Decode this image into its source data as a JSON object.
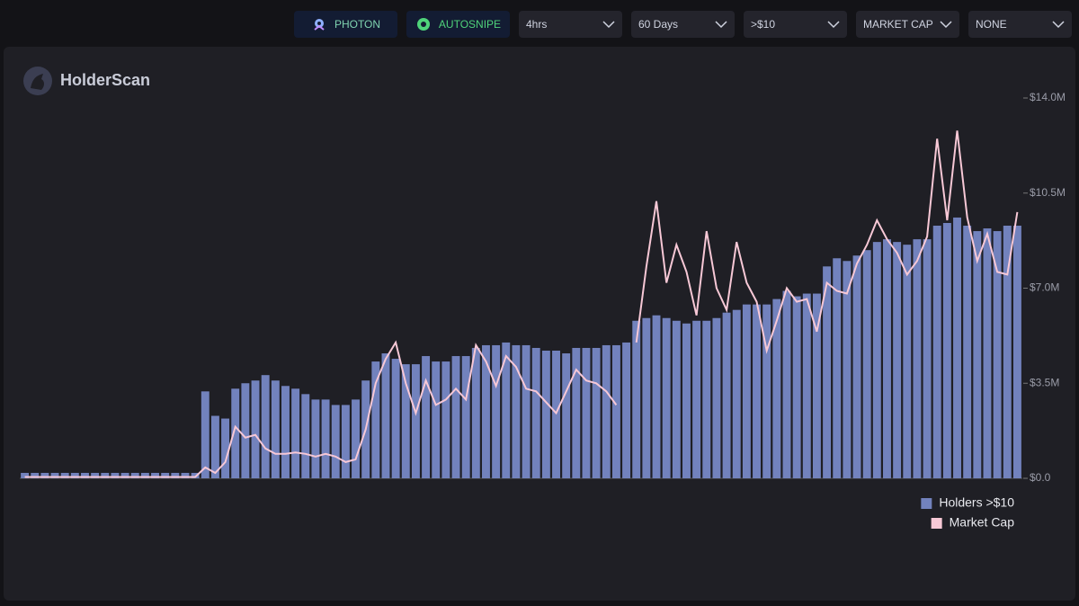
{
  "toolbar": {
    "buttons": [
      "PHOTON",
      "AUTOSNIPE"
    ],
    "dropdowns": [
      "4hrs",
      "60 Days",
      ">$10",
      "MARKET CAP",
      "NONE"
    ]
  },
  "brand": "HolderScan",
  "chart_data": {
    "type": "combo",
    "categories": [
      null,
      null,
      null,
      null,
      null,
      null,
      null,
      null,
      null,
      null,
      null,
      null,
      null,
      null,
      null,
      null,
      null,
      null,
      null,
      null,
      null,
      null,
      null,
      null,
      null,
      null,
      null,
      null,
      null,
      null,
      null,
      null,
      null,
      null,
      null,
      null,
      null,
      null,
      null,
      null,
      null,
      null,
      null,
      null,
      null,
      null,
      null,
      null,
      null,
      null,
      null,
      null,
      null,
      null,
      null,
      null,
      null,
      null,
      null,
      null,
      null,
      null,
      null,
      null,
      null,
      null,
      null,
      null,
      null,
      null,
      null,
      null,
      null,
      null,
      null,
      null,
      null,
      null,
      null,
      null,
      null,
      null,
      null,
      null,
      null,
      null,
      null,
      null,
      null,
      null,
      null,
      null,
      null,
      null,
      null,
      null,
      null,
      null,
      null,
      null
    ],
    "series": [
      {
        "name": "Holders >$10",
        "type": "bar",
        "color": "#7282bd",
        "values": [
          0.2,
          0.2,
          0.2,
          0.2,
          0.2,
          0.2,
          0.2,
          0.2,
          0.2,
          0.2,
          0.2,
          0.2,
          0.2,
          0.2,
          0.2,
          0.2,
          0.2,
          0.2,
          3.2,
          2.3,
          2.2,
          3.3,
          3.5,
          3.6,
          3.8,
          3.6,
          3.4,
          3.3,
          3.1,
          2.9,
          2.9,
          2.7,
          2.7,
          2.9,
          3.6,
          4.3,
          4.6,
          4.4,
          4.2,
          4.2,
          4.5,
          4.3,
          4.3,
          4.5,
          4.5,
          4.8,
          4.9,
          4.9,
          5.0,
          4.9,
          4.9,
          4.8,
          4.7,
          4.7,
          4.6,
          4.8,
          4.8,
          4.8,
          4.9,
          4.9,
          5.0,
          5.8,
          5.9,
          6.0,
          5.9,
          5.8,
          5.7,
          5.8,
          5.8,
          5.9,
          6.1,
          6.2,
          6.4,
          6.4,
          6.4,
          6.6,
          6.9,
          6.7,
          6.8,
          6.8,
          7.8,
          8.1,
          8.0,
          8.2,
          8.4,
          8.7,
          8.8,
          8.7,
          8.6,
          8.8,
          8.8,
          9.3,
          9.4,
          9.6,
          9.3,
          9.1,
          9.2,
          9.1,
          9.3,
          9.3
        ]
      },
      {
        "name": "Market Cap",
        "type": "line",
        "color": "#f7c8d6",
        "values": [
          0.05,
          0.05,
          0.05,
          0.05,
          0.05,
          0.05,
          0.05,
          0.05,
          0.05,
          0.05,
          0.05,
          0.05,
          0.05,
          0.05,
          0.05,
          0.05,
          0.05,
          0.05,
          0.4,
          0.2,
          0.6,
          1.9,
          1.5,
          1.6,
          1.1,
          0.9,
          0.9,
          0.95,
          0.9,
          0.8,
          0.9,
          0.8,
          0.6,
          0.7,
          1.8,
          3.5,
          4.4,
          5.0,
          3.5,
          2.4,
          3.6,
          2.7,
          2.9,
          3.3,
          2.9,
          4.9,
          4.3,
          3.4,
          4.5,
          4.1,
          3.3,
          3.2,
          2.8,
          2.4,
          3.2,
          4.0,
          3.6,
          3.5,
          3.2,
          2.7,
          null,
          5.0,
          7.8,
          10.2,
          7.2,
          8.6,
          7.6,
          6.0,
          9.1,
          7.0,
          6.2,
          8.7,
          7.2,
          6.5,
          4.7,
          5.8,
          7.0,
          6.5,
          6.6,
          5.4,
          7.2,
          6.9,
          6.8,
          7.9,
          8.6,
          9.5,
          8.8,
          8.3,
          7.5,
          8.0,
          8.9,
          12.5,
          9.5,
          12.8,
          9.6,
          8.0,
          9.0,
          7.6,
          7.5,
          9.8
        ]
      }
    ],
    "ylim": [
      0,
      14
    ],
    "yticks": [
      {
        "value": 0,
        "label": "$0.0"
      },
      {
        "value": 3.5,
        "label": "$3.5M"
      },
      {
        "value": 7,
        "label": "$7.0M"
      },
      {
        "value": 10.5,
        "label": "$10.5M"
      },
      {
        "value": 14,
        "label": "$14.0M"
      }
    ],
    "grid": false,
    "legend": "bottom-right"
  }
}
